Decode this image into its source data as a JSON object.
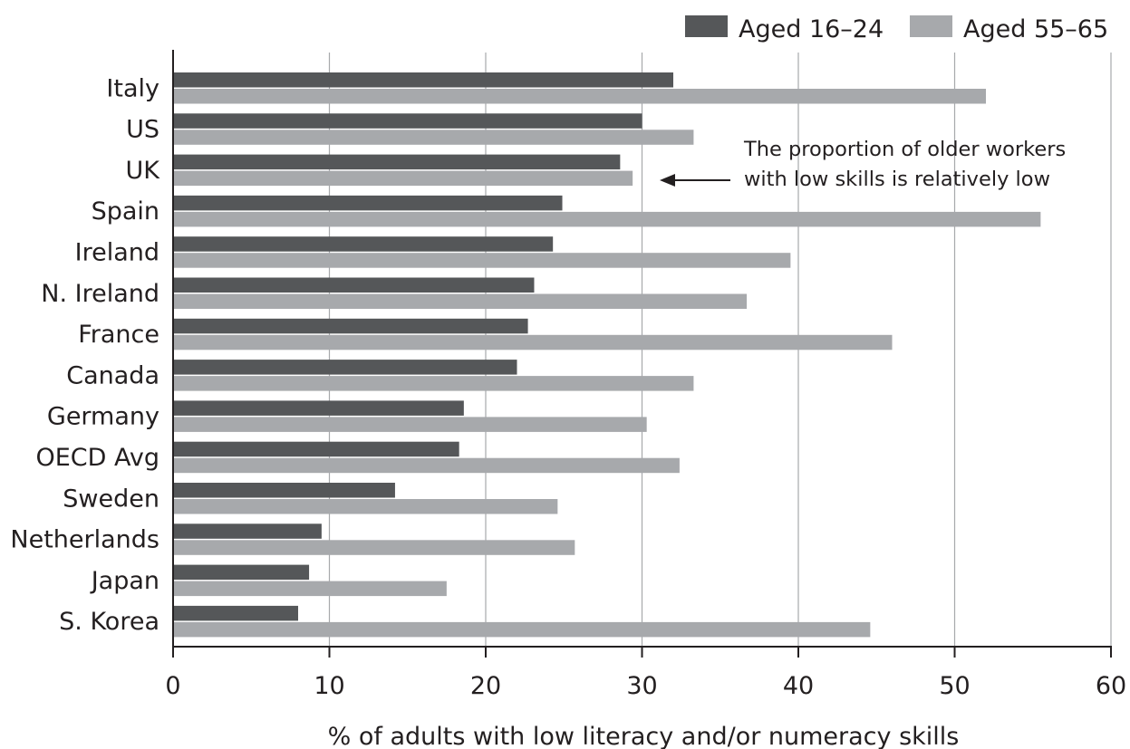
{
  "chart_data": {
    "type": "bar",
    "orientation": "horizontal",
    "categories": [
      "Italy",
      "US",
      "UK",
      "Spain",
      "Ireland",
      "N. Ireland",
      "France",
      "Canada",
      "Germany",
      "OECD Avg",
      "Sweden",
      "Netherlands",
      "Japan",
      "S. Korea"
    ],
    "series": [
      {
        "name": "Aged 16–24",
        "color": "#555759",
        "values": [
          32.0,
          30.0,
          28.6,
          24.9,
          24.3,
          23.1,
          22.7,
          22.0,
          18.6,
          18.3,
          14.2,
          9.5,
          8.7,
          8.0
        ]
      },
      {
        "name": "Aged 55–65",
        "color": "#a7a9ac",
        "values": [
          52.0,
          33.3,
          29.4,
          55.5,
          39.5,
          36.7,
          46.0,
          33.3,
          30.3,
          32.4,
          24.6,
          25.7,
          17.5,
          44.6
        ]
      }
    ],
    "xlabel": "% of adults with low literacy and/or numeracy skills",
    "xlim": [
      0,
      60
    ],
    "xticks": [
      0,
      10,
      20,
      30,
      40,
      50,
      60
    ],
    "grid": "vertical",
    "legend": "top-right",
    "annotation": {
      "lines": [
        "The proportion of older workers",
        "with low skills is relatively low"
      ],
      "points_to": "UK"
    }
  }
}
